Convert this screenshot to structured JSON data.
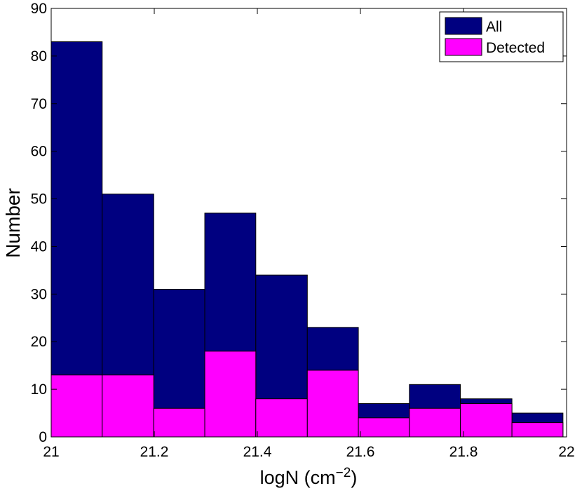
{
  "chart_data": {
    "type": "histogram",
    "x_label": [
      "logN (cm",
      "−2",
      ")"
    ],
    "y_label": "Number",
    "bins": [
      21.0,
      21.099,
      21.199,
      21.298,
      21.397,
      21.497,
      21.596,
      21.695,
      21.794,
      21.894,
      21.993
    ],
    "series": [
      {
        "name": "All",
        "color": "#000080",
        "values": [
          83,
          51,
          31,
          47,
          34,
          23,
          7,
          11,
          8,
          5
        ]
      },
      {
        "name": "Detected",
        "color": "#ff00ff",
        "values": [
          13,
          13,
          6,
          18,
          8,
          14,
          4,
          6,
          7,
          3
        ]
      }
    ],
    "xlim": [
      21,
      22
    ],
    "xticks": [
      21,
      21.2,
      21.4,
      21.6,
      21.8,
      22
    ],
    "ylim": [
      0,
      90
    ],
    "yticks": [
      0,
      10,
      20,
      30,
      40,
      50,
      60,
      70,
      80,
      90
    ],
    "legend": "upper right"
  }
}
